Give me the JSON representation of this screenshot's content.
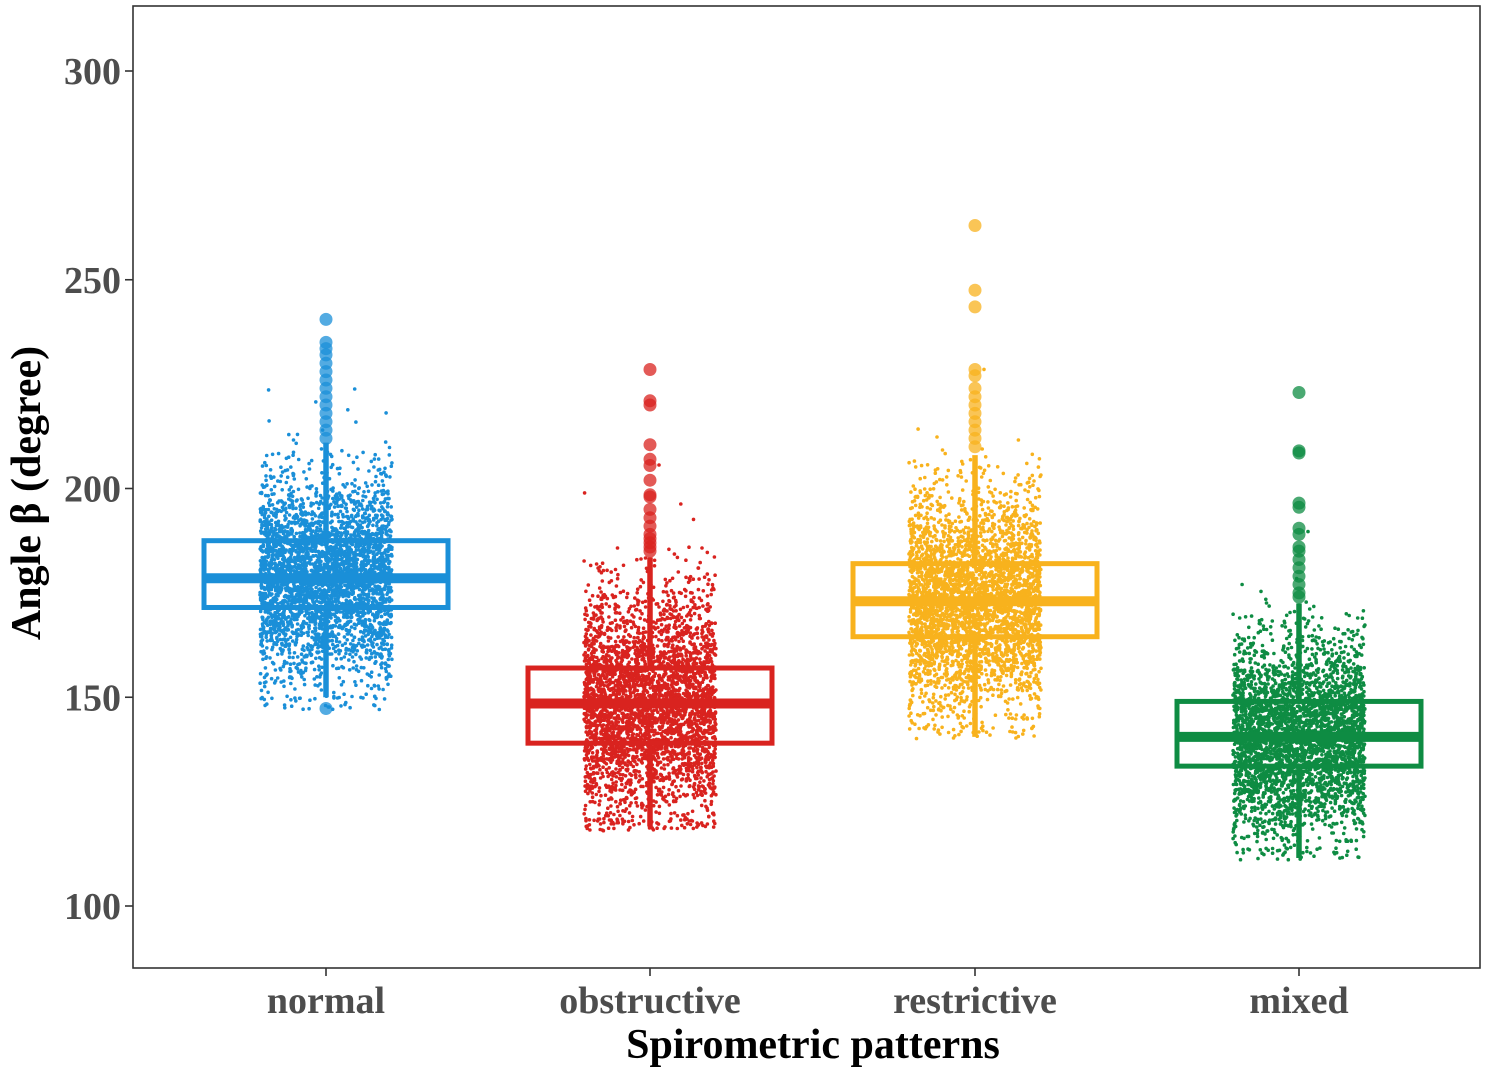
{
  "chart_data": {
    "type": "box",
    "xlabel": "Spirometric patterns",
    "ylabel": "Angle β (degree)",
    "ylim": [
      85,
      315
    ],
    "yticks": [
      100,
      150,
      200,
      250,
      300
    ],
    "grid": false,
    "legend": "none",
    "categories": [
      "normal",
      "obstructive",
      "restrictive",
      "mixed"
    ],
    "series": [
      {
        "category": "normal",
        "color": "#1a8fd8",
        "q1": 171.5,
        "median": 178.5,
        "q3": 187.5,
        "whisker_low": 150,
        "whisker_high": 211,
        "jitter_range": [
          147,
          234
        ],
        "outliers": [
          147.3,
          212,
          214,
          216,
          218,
          220,
          222,
          224,
          226,
          228,
          230,
          232,
          233.5,
          235,
          240.5
        ]
      },
      {
        "category": "obstructive",
        "color": "#d9231f",
        "q1": 139,
        "median": 148.5,
        "q3": 157,
        "whisker_low": 119,
        "whisker_high": 183.5,
        "jitter_range": [
          118,
          229
        ],
        "outliers": [
          185,
          186,
          187,
          188,
          189,
          191,
          193,
          195,
          198,
          198.5,
          202,
          205.5,
          207,
          210.5,
          220,
          221,
          228.5
        ]
      },
      {
        "category": "restrictive",
        "color": "#f8b21d",
        "q1": 164.5,
        "median": 173,
        "q3": 182,
        "whisker_low": 140.5,
        "whisker_high": 208,
        "jitter_range": [
          140,
          244
        ],
        "outliers": [
          210,
          212,
          214,
          216,
          218,
          220,
          222,
          224,
          227,
          228.5,
          243.5,
          247.5,
          263
        ]
      },
      {
        "category": "mixed",
        "color": "#0e8c43",
        "q1": 133.5,
        "median": 140.5,
        "q3": 149,
        "whisker_low": 111.5,
        "whisker_high": 172.5,
        "jitter_range": [
          111,
          210
        ],
        "outliers": [
          174,
          175,
          177,
          179,
          181,
          183,
          185,
          186,
          189,
          190.5,
          195.5,
          196.5,
          208.5,
          209,
          223
        ]
      }
    ]
  }
}
